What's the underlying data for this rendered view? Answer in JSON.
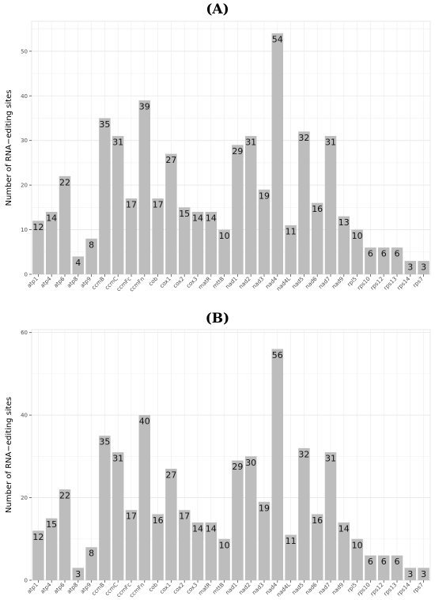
{
  "chart_data": [
    {
      "type": "bar",
      "title": "(A)",
      "ylabel": "Number of RNA−editing sites",
      "xlabel": "",
      "categories": [
        "atp1",
        "atp4",
        "atp6",
        "atp8",
        "atp9",
        "ccmB",
        "ccmC",
        "ccmFc",
        "ccmFn",
        "cob",
        "cox1",
        "cox2",
        "cox3",
        "matR",
        "mttB",
        "nad1",
        "nad2",
        "nad3",
        "nad4",
        "nad4L",
        "nad5",
        "nad6",
        "nad7",
        "nad9",
        "rpl5",
        "rps10",
        "rps12",
        "rps13",
        "rps14",
        "rps7"
      ],
      "values": [
        12,
        14,
        22,
        4,
        8,
        35,
        31,
        17,
        39,
        17,
        27,
        15,
        14,
        14,
        10,
        29,
        31,
        19,
        54,
        11,
        32,
        16,
        31,
        13,
        10,
        6,
        6,
        6,
        3,
        3
      ],
      "ylim": [
        0,
        56.7
      ],
      "yticks": [
        0,
        10,
        20,
        30,
        40,
        50
      ],
      "bar_color": "#bdbdbd",
      "grid": true
    },
    {
      "type": "bar",
      "title": "(B)",
      "ylabel": "Number of RNA−editing sites",
      "xlabel": "",
      "categories": [
        "atp1",
        "atp4",
        "atp6",
        "atp8",
        "atp9",
        "ccmB",
        "ccmC",
        "ccmFc",
        "ccmFn",
        "cob",
        "cox1",
        "cox2",
        "cox3",
        "matR",
        "mttB",
        "nad1",
        "nad2",
        "nad3",
        "nad4",
        "nad4L",
        "nad5",
        "nad6",
        "nad7",
        "nad9",
        "rpl5",
        "rps10",
        "rps12",
        "rps13",
        "rps14",
        "rps7"
      ],
      "values": [
        12,
        15,
        22,
        3,
        8,
        35,
        31,
        17,
        40,
        16,
        27,
        17,
        14,
        14,
        10,
        29,
        30,
        19,
        56,
        11,
        32,
        16,
        31,
        14,
        10,
        6,
        6,
        6,
        3,
        3
      ],
      "ylim": [
        0,
        60.7
      ],
      "yticks": [
        0,
        20,
        40,
        60
      ],
      "bar_color": "#bdbdbd",
      "grid": true
    }
  ]
}
